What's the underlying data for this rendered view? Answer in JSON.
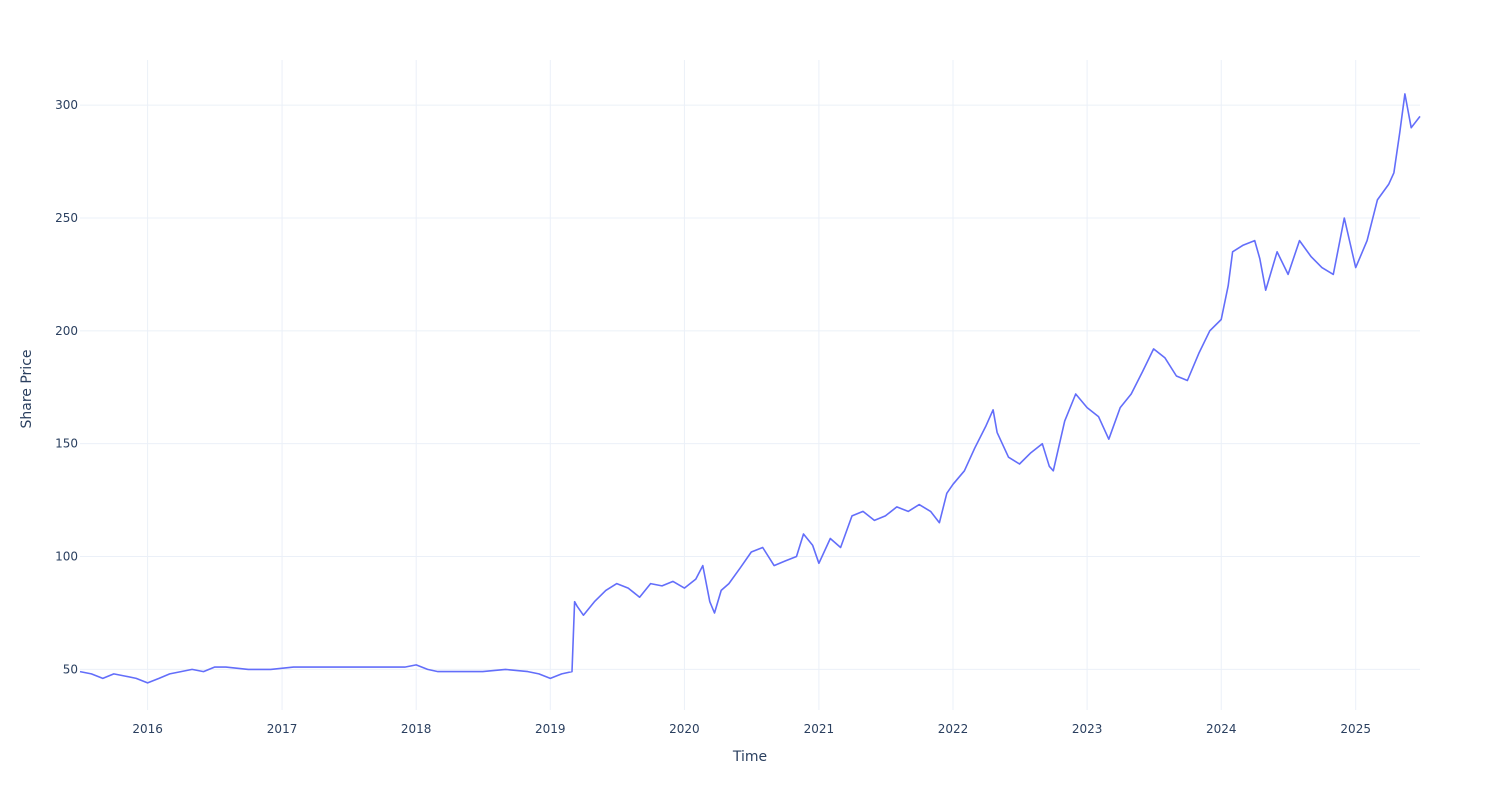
{
  "chart_data": {
    "type": "line",
    "title": "",
    "xlabel": "Time",
    "ylabel": "Share Price",
    "x_ticks": [
      "2016",
      "2017",
      "2018",
      "2019",
      "2020",
      "2021",
      "2022",
      "2023",
      "2024",
      "2025"
    ],
    "y_ticks": [
      50,
      100,
      150,
      200,
      250,
      300
    ],
    "xlim": [
      "2015-07-01",
      "2025-06-25"
    ],
    "ylim": [
      32,
      320
    ],
    "grid": true,
    "legend": "none",
    "colors": {
      "line": "#636efa",
      "grid": "#ebf0f8",
      "text": "#2a3f5f"
    },
    "series": [
      {
        "x": [
          "2015-07-01",
          "2015-08-01",
          "2015-09-01",
          "2015-10-01",
          "2015-11-01",
          "2015-12-01",
          "2016-01-01",
          "2016-02-01",
          "2016-03-01",
          "2016-04-01",
          "2016-05-01",
          "2016-06-01",
          "2016-07-01",
          "2016-08-01",
          "2016-10-01",
          "2016-12-01",
          "2017-02-01",
          "2017-04-01",
          "2017-06-01",
          "2017-08-01",
          "2017-10-01",
          "2017-12-01",
          "2018-01-01",
          "2018-02-01",
          "2018-03-01",
          "2018-05-01",
          "2018-07-01",
          "2018-09-01",
          "2018-11-01",
          "2018-12-01",
          "2019-01-01",
          "2019-02-01",
          "2019-03-01",
          "2019-03-08",
          "2019-03-15",
          "2019-04-01",
          "2019-05-01",
          "2019-06-01",
          "2019-07-01",
          "2019-08-01",
          "2019-09-01",
          "2019-10-01",
          "2019-11-01",
          "2019-12-01",
          "2020-01-01",
          "2020-02-01",
          "2020-02-20",
          "2020-03-10",
          "2020-03-23",
          "2020-04-10",
          "2020-05-01",
          "2020-06-01",
          "2020-07-01",
          "2020-08-01",
          "2020-09-01",
          "2020-10-01",
          "2020-11-01",
          "2020-11-20",
          "2020-12-15",
          "2021-01-01",
          "2021-02-01",
          "2021-03-01",
          "2021-04-01",
          "2021-05-01",
          "2021-06-01",
          "2021-07-01",
          "2021-08-01",
          "2021-09-01",
          "2021-10-01",
          "2021-11-01",
          "2021-11-25",
          "2021-12-15",
          "2022-01-01",
          "2022-02-01",
          "2022-03-01",
          "2022-04-01",
          "2022-04-20",
          "2022-05-01",
          "2022-06-01",
          "2022-07-01",
          "2022-08-01",
          "2022-09-01",
          "2022-09-20",
          "2022-10-01",
          "2022-11-01",
          "2022-12-01",
          "2023-01-01",
          "2023-02-01",
          "2023-03-01",
          "2023-04-01",
          "2023-05-01",
          "2023-06-01",
          "2023-07-01",
          "2023-08-01",
          "2023-09-01",
          "2023-10-01",
          "2023-11-01",
          "2023-12-01",
          "2024-01-01",
          "2024-01-20",
          "2024-02-01",
          "2024-03-01",
          "2024-04-01",
          "2024-04-15",
          "2024-05-01",
          "2024-06-01",
          "2024-07-01",
          "2024-08-01",
          "2024-09-01",
          "2024-10-01",
          "2024-11-01",
          "2024-12-01",
          "2025-01-01",
          "2025-02-01",
          "2025-03-01",
          "2025-04-01",
          "2025-04-15",
          "2025-05-01",
          "2025-05-15",
          "2025-06-01",
          "2025-06-25"
        ],
        "y": [
          49,
          48,
          46,
          48,
          47,
          46,
          44,
          46,
          48,
          49,
          50,
          49,
          51,
          51,
          50,
          50,
          51,
          51,
          51,
          51,
          51,
          51,
          52,
          50,
          49,
          49,
          49,
          50,
          49,
          48,
          46,
          48,
          49,
          80,
          78,
          74,
          80,
          85,
          88,
          86,
          82,
          88,
          87,
          89,
          86,
          90,
          96,
          80,
          75,
          85,
          88,
          95,
          102,
          104,
          96,
          98,
          100,
          110,
          105,
          97,
          108,
          104,
          118,
          120,
          116,
          118,
          122,
          120,
          123,
          120,
          115,
          128,
          132,
          138,
          148,
          158,
          165,
          155,
          144,
          141,
          146,
          150,
          140,
          138,
          160,
          172,
          166,
          162,
          152,
          166,
          172,
          182,
          192,
          188,
          180,
          178,
          190,
          200,
          205,
          220,
          235,
          238,
          240,
          232,
          218,
          235,
          225,
          240,
          233,
          228,
          225,
          250,
          228,
          240,
          258,
          265,
          270,
          288,
          305,
          290,
          295
        ]
      }
    ]
  }
}
